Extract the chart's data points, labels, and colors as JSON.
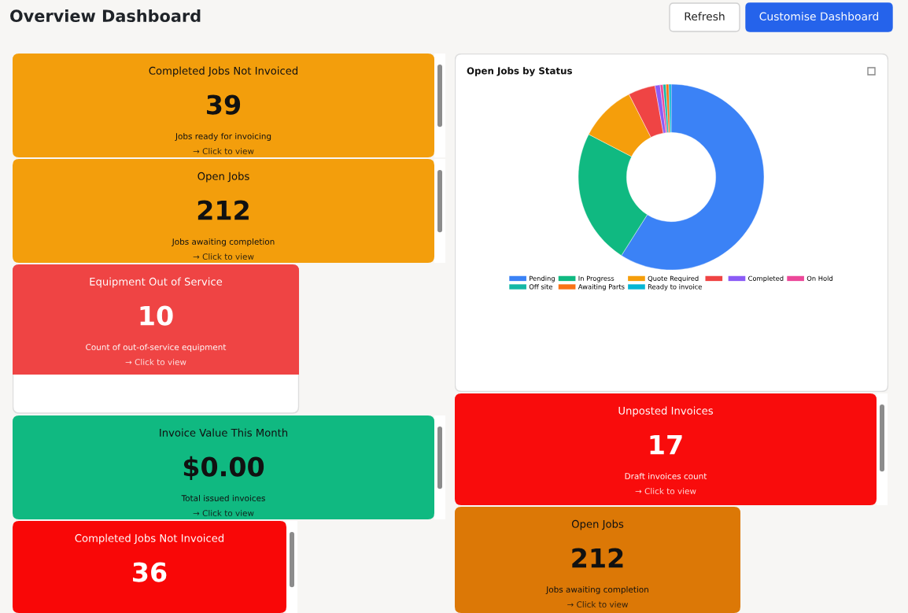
{
  "chart_data": [
    {
      "type": "other",
      "title": "Overview Dashboard",
      "annotations": [
        "Refresh",
        "Customise Dashboard"
      ]
    },
    {
      "type": "other",
      "title": "Completed Jobs Not Invoiced",
      "color": "#f39e0c",
      "annotations": [
        "39",
        "Jobs ready for invoicing",
        "→ Click to view"
      ]
    },
    {
      "type": "donut",
      "title": "Open Jobs by Status",
      "categories": [
        "Pending",
        "In Progress",
        "Quote Required",
        null,
        "Completed",
        "On Hold",
        "Off site",
        "Awaiting Parts",
        "Ready to invoice"
      ],
      "values": [
        59.0,
        23.6,
        9.9,
        4.7,
        0.9,
        0.5,
        0.5,
        0.5,
        0.4
      ],
      "colors": [
        "#3b82f6",
        "#10b981",
        "#f59e0b",
        "#ef4444",
        "#8b5cf6",
        "#ec4899",
        "#14b8a6",
        "#f97316",
        "#06b6d4"
      ],
      "legend": "bottom"
    },
    {
      "type": "other",
      "title": "Open Jobs",
      "color": "#f39e0c",
      "annotations": [
        "212",
        "Jobs awaiting completion",
        "→ Click to view"
      ]
    },
    {
      "type": "other",
      "title": "Equipment Out of Service",
      "color": "#ef4444",
      "annotations": [
        "10",
        "Count of out-of-service equipment",
        "→ Click to view"
      ]
    },
    {
      "type": "other",
      "title": "Unposted Invoices",
      "color": "#f90c0c",
      "annotations": [
        "17",
        "Draft invoices count",
        "→ Click to view"
      ]
    },
    {
      "type": "other",
      "title": "Invoice Value This Month",
      "color": "#10b981",
      "annotations": [
        "$0.00",
        "Total issued invoices",
        "→ Click to view"
      ]
    },
    {
      "type": "other",
      "title": "Open Jobs",
      "color": "#dc7806",
      "annotations": [
        "212",
        "Jobs awaiting completion",
        "→ Click to view"
      ]
    },
    {
      "type": "other",
      "title": "Completed Jobs Not Invoiced",
      "color": "#f90707",
      "annotations": [
        "36"
      ]
    }
  ]
}
